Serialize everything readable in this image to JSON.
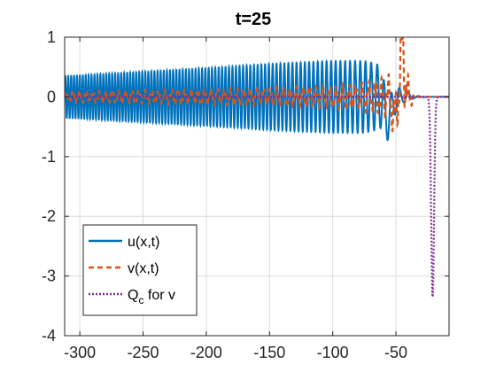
{
  "chart_data": {
    "type": "line",
    "title": "t=25",
    "xlabel": "",
    "ylabel": "",
    "xlim": [
      -312,
      -8
    ],
    "ylim": [
      -4,
      1
    ],
    "xticks": [
      -300,
      -250,
      -200,
      -150,
      -100,
      -50
    ],
    "yticks": [
      1,
      0,
      -1,
      -2,
      -3,
      -4
    ],
    "xtick_labels": [
      "-300",
      "-250",
      "-200",
      "-150",
      "-100",
      "-50"
    ],
    "ytick_labels": [
      "1",
      "0",
      "-1",
      "-2",
      "-3",
      "-4"
    ],
    "grid": true,
    "legend_position": "bottom-left",
    "series": [
      {
        "name": "u(x,t)",
        "label_main": "u(x,t)",
        "label_sub": "",
        "label_tail": "",
        "color": "#0072BD",
        "style": "solid",
        "description_points": {
          "x": [
            -312,
            -300,
            -250,
            -200,
            -150,
            -100,
            -75,
            -65,
            -55,
            -45,
            -35,
            -25,
            -8
          ],
          "envelope": [
            0.35,
            0.36,
            0.42,
            0.48,
            0.55,
            0.6,
            0.6,
            0.55,
            0.35,
            0.1,
            0.02,
            0.0,
            0.0
          ],
          "period": [
            2.3,
            2.3,
            2.4,
            2.6,
            3.0,
            3.6,
            4.2,
            5.0,
            6.0,
            7.0,
            8.0,
            9.0,
            9.0
          ]
        },
        "wave_packet_trough": {
          "x": -56,
          "y": -0.45
        }
      },
      {
        "name": "v(x,t)",
        "label_main": "v(x,t)",
        "label_sub": "",
        "label_tail": "",
        "color": "#D95319",
        "style": "dashed",
        "description_points": {
          "x": [
            -312,
            -250,
            -200,
            -150,
            -100,
            -75,
            -60,
            -50,
            -45,
            -40,
            -35,
            -8
          ],
          "amplitude": [
            0.1,
            0.12,
            0.14,
            0.16,
            0.2,
            0.25,
            0.35,
            0.45,
            0.85,
            0.3,
            0.05,
            0.0
          ]
        },
        "peak": {
          "x": -45,
          "y": 0.85
        }
      },
      {
        "name": "Qc for v",
        "label_main": "Q",
        "label_sub": "c",
        "label_tail": " for v",
        "color": "#7E2F8E",
        "style": "dotted",
        "baseline": 0,
        "dip": {
          "x": -21,
          "y": -3.35,
          "width": 1.6
        }
      }
    ]
  }
}
